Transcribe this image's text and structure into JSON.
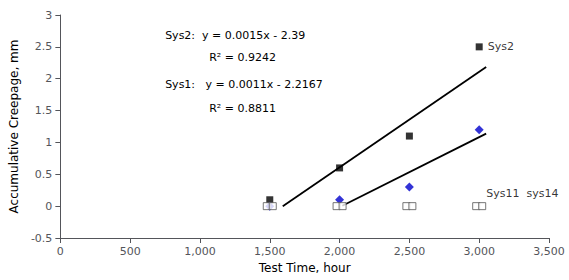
{
  "chart_data": {
    "type": "scatter",
    "xlabel": "Test Time, hour",
    "ylabel": "Accumulative Creepage, mm",
    "xlim": [
      0,
      3500
    ],
    "ylim": [
      -0.5,
      3
    ],
    "xticks": [
      0,
      500,
      1000,
      1500,
      2000,
      2500,
      3000,
      3500
    ],
    "yticks": [
      -0.5,
      0,
      0.5,
      1,
      1.5,
      2,
      2.5,
      3
    ],
    "grid": false,
    "series": [
      {
        "type": "line",
        "color": "#000000",
        "x": [
          1593,
          3050
        ],
        "values": [
          -0.0005,
          2.185
        ]
      },
      {
        "type": "line",
        "color": "#000000",
        "x": [
          2020,
          3050
        ],
        "values": [
          0.0053,
          1.1383
        ]
      },
      {
        "name": "Sys2",
        "type": "scatter",
        "marker": "square",
        "color": "#000000",
        "x": [
          1500,
          2000,
          2500,
          3000
        ],
        "values": [
          0.1,
          0.6,
          1.1,
          2.5
        ]
      },
      {
        "name": "Sys1",
        "type": "scatter",
        "marker": "diamond",
        "color": "#0000cc",
        "x": [
          1500,
          2000,
          2500,
          3000
        ],
        "values": [
          0.0,
          0.1,
          0.3,
          1.2
        ]
      },
      {
        "name": "Sys11",
        "type": "scatter",
        "marker": "open square",
        "color": "#555555",
        "x": [
          1500,
          2000,
          2500,
          3000
        ],
        "values": [
          0.0,
          0.0,
          0.0,
          0.0
        ]
      },
      {
        "name": "sys14",
        "type": "scatter",
        "marker": "open square",
        "color": "#555555",
        "x": [
          1500,
          2000,
          2500,
          3000
        ],
        "values": [
          0.0,
          0.0,
          0.0,
          0.0
        ]
      }
    ],
    "annotations": [
      "Sys2:  y = 0.0015x - 2.39",
      "R² = 0.9242",
      "Sys1:   y = 0.0011x - 2.2167",
      "R² = 0.8811",
      "Sys11  sys14"
    ]
  }
}
